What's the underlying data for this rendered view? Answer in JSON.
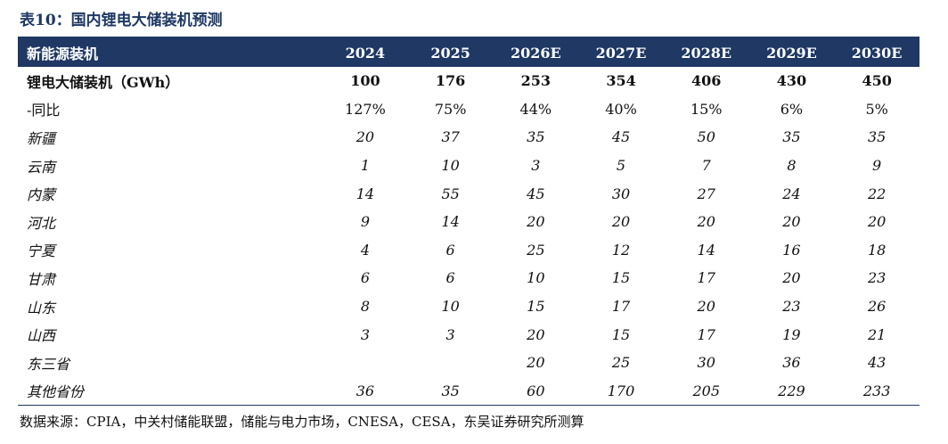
{
  "title": "表10：国内锂电大储装机预测",
  "table": {
    "headers": [
      "新能源装机",
      "2024",
      "2025",
      "2026E",
      "2027E",
      "2028E",
      "2029E",
      "2030E"
    ],
    "rows": [
      {
        "label": "锂电大储装机（GWh）",
        "style": "bold",
        "values": [
          "100",
          "176",
          "253",
          "354",
          "406",
          "430",
          "450"
        ]
      },
      {
        "label": "-同比",
        "style": "normal",
        "values": [
          "127%",
          "75%",
          "44%",
          "40%",
          "15%",
          "6%",
          "5%"
        ]
      },
      {
        "label": "新疆",
        "style": "region",
        "values": [
          "20",
          "37",
          "35",
          "45",
          "50",
          "35",
          "35"
        ]
      },
      {
        "label": "云南",
        "style": "region",
        "values": [
          "1",
          "10",
          "3",
          "5",
          "7",
          "8",
          "9"
        ]
      },
      {
        "label": "内蒙",
        "style": "region",
        "values": [
          "14",
          "55",
          "45",
          "30",
          "27",
          "24",
          "22"
        ]
      },
      {
        "label": "河北",
        "style": "region",
        "values": [
          "9",
          "14",
          "20",
          "20",
          "20",
          "20",
          "20"
        ]
      },
      {
        "label": "宁夏",
        "style": "region",
        "values": [
          "4",
          "6",
          "25",
          "12",
          "14",
          "16",
          "18"
        ]
      },
      {
        "label": "甘肃",
        "style": "region",
        "values": [
          "6",
          "6",
          "10",
          "15",
          "17",
          "20",
          "23"
        ]
      },
      {
        "label": "山东",
        "style": "region",
        "values": [
          "8",
          "10",
          "15",
          "17",
          "20",
          "23",
          "26"
        ]
      },
      {
        "label": "山西",
        "style": "region",
        "values": [
          "3",
          "3",
          "20",
          "15",
          "17",
          "19",
          "21"
        ]
      },
      {
        "label": "东三省",
        "style": "region",
        "values": [
          "",
          "",
          "20",
          "25",
          "30",
          "36",
          "43"
        ]
      },
      {
        "label": "其他省份",
        "style": "region",
        "values": [
          "36",
          "35",
          "60",
          "170",
          "205",
          "229",
          "233"
        ]
      }
    ]
  },
  "source": "数据来源：CPIA，中关村储能联盟，储能与电力市场，CNESA，CESA，东吴证券研究所测算"
}
